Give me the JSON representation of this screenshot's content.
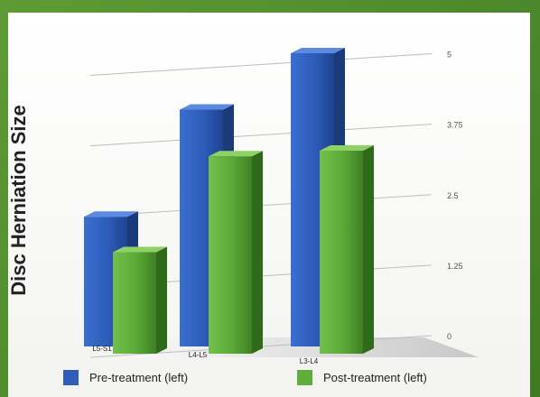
{
  "chart_data": {
    "type": "bar",
    "title": "",
    "ylabel": "Disc Herniation Size",
    "xlabel": "",
    "categories": [
      "L5-S1",
      "L4-L5",
      "L3-L4"
    ],
    "series": [
      {
        "name": "Pre-treatment (left)",
        "color": "#2f5db8",
        "values": [
          2.3,
          4.2,
          5.2
        ]
      },
      {
        "name": "Post-treatment (left)",
        "color": "#5fae3c",
        "values": [
          1.8,
          3.5,
          3.6
        ]
      }
    ],
    "yticks": [
      "0",
      "1.25",
      "2.5",
      "3.75",
      "5"
    ],
    "ylim": [
      0,
      5
    ],
    "grid": true,
    "legend": "bottom",
    "style": "3d"
  }
}
